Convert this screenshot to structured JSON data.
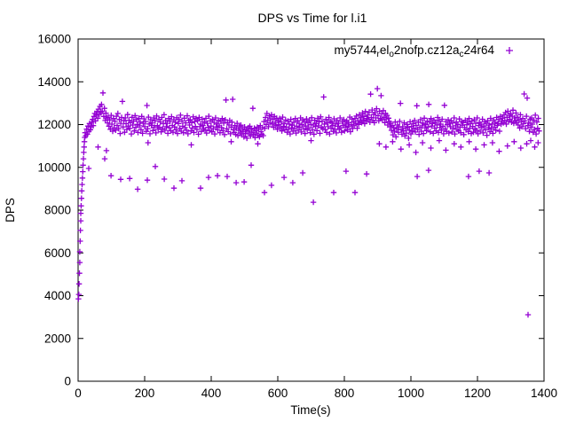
{
  "window": {
    "title": "DPS vs Time for l.i1"
  },
  "chart_data": {
    "type": "scatter",
    "title": "DPS vs Time for l.i1",
    "xlabel": "Time(s)",
    "ylabel": "DPS",
    "xlim": [
      0,
      1400
    ],
    "ylim": [
      0,
      16000
    ],
    "xticks": [
      0,
      200,
      400,
      600,
      800,
      1000,
      1200,
      1400
    ],
    "yticks": [
      0,
      2000,
      4000,
      6000,
      8000,
      10000,
      12000,
      14000,
      16000
    ],
    "grid": false,
    "legend_position": "top-right-inside",
    "marker": "plus",
    "background": "#ffffff",
    "axis_color": "#000000",
    "series": [
      {
        "name": "my5744_rel_o2nofp.cz12a_c24r64",
        "name_display": [
          [
            "t",
            "my5744"
          ],
          [
            "s",
            "r"
          ],
          [
            "t",
            "el"
          ],
          [
            "s",
            "o"
          ],
          [
            "t",
            "2nofp.cz12a"
          ],
          [
            "s",
            "c"
          ],
          [
            "t",
            "24r64"
          ]
        ],
        "color": "#9400d3",
        "ramp_points": [
          [
            1,
            3850
          ],
          [
            2,
            4060
          ],
          [
            3,
            4550
          ],
          [
            4,
            5050
          ],
          [
            5,
            5550
          ],
          [
            5,
            6050
          ],
          [
            6,
            6550
          ],
          [
            7,
            7050
          ],
          [
            8,
            7500
          ],
          [
            8,
            7850
          ],
          [
            9,
            8200
          ],
          [
            10,
            8550
          ],
          [
            11,
            8900
          ],
          [
            12,
            9200
          ],
          [
            13,
            9500
          ],
          [
            14,
            9800
          ],
          [
            15,
            10100
          ],
          [
            16,
            10400
          ],
          [
            17,
            10700
          ],
          [
            18,
            10950
          ],
          [
            19,
            11200
          ],
          [
            20,
            11400
          ]
        ],
        "band": {
          "t_start": 21,
          "t_step": 2.24,
          "values": [
            11620,
            11480,
            11790,
            11550,
            11930,
            11680,
            12050,
            11760,
            11890,
            12110,
            12240,
            11950,
            12380,
            12520,
            12170,
            12450,
            12610,
            12300,
            12720,
            12480,
            12850,
            12560,
            12940,
            12620,
            13480,
            12380,
            12760,
            12190,
            12530,
            12310,
            12080,
            12350,
            11920,
            12210,
            11780,
            12430,
            12020,
            11690,
            12280,
            11850,
            12150,
            11740,
            12390,
            11960,
            12520,
            11810,
            12240,
            11580,
            12060,
            12330,
            13080,
            11890,
            12180,
            11640,
            12310,
            12040,
            11770,
            12470,
            11930,
            12200,
            11820,
            12090,
            11560,
            12340,
            11980,
            12160,
            11700,
            12420,
            11870,
            12240,
            12010,
            11630,
            12290,
            11940,
            12120,
            11760,
            12380,
            11590,
            12060,
            12270,
            11900,
            12140,
            11680,
            12890,
            11810,
            12350,
            12030,
            11570,
            12230,
            11960,
            12080,
            11720,
            12310,
            11880,
            12170,
            11610,
            12400,
            11950,
            11790,
            12250,
            11870,
            12120,
            11660,
            12330,
            11800,
            12040,
            12460,
            11730,
            12190,
            11900,
            12060,
            11590,
            12280,
            11850,
            12150,
            11710,
            12370,
            11960,
            11640,
            12230,
            11890,
            12110,
            11750,
            12320,
            11580,
            12050,
            12240,
            11830,
            12440,
            11690,
            12160,
            11920,
            11620,
            12300,
            11860,
            12080,
            11740,
            12410,
            11570,
            12190,
            11980,
            12230,
            11700,
            12090,
            11840,
            12360,
            11630,
            12140,
            11910,
            12280,
            11770,
            12180,
            11550,
            12330,
            11900,
            12020,
            11680,
            12250,
            11960,
            11810,
            12120,
            11740,
            12290,
            11600,
            12060,
            11870,
            12390,
            11720,
            12170,
            11930,
            11660,
            12240,
            11810,
            12100,
            11560,
            12310,
            11890,
            12030,
            11750,
            12200,
            11940,
            11620,
            12150,
            11860,
            12280,
            11710,
            12070,
            11530,
            12220,
            13150,
            11800,
            12090,
            11670,
            11980,
            12190,
            11570,
            11880,
            12110,
            13180,
            11760,
            11630,
            11950,
            11540,
            11830,
            12060,
            11480,
            11740,
            11900,
            11600,
            11970,
            11520,
            11810,
            11680,
            11430,
            11890,
            11590,
            11760,
            11360,
            11700,
            11850,
            11560,
            11920,
            11470,
            11780,
            11640,
            12760,
            11540,
            11830,
            11390,
            11710,
            11600,
            11880,
            11500,
            11790,
            11430,
            11950,
            11670,
            11550,
            11860,
            11480,
            12140,
            11820,
            12330,
            12010,
            12520,
            12190,
            11900,
            12410,
            12080,
            12270,
            12460,
            12030,
            12250,
            11870,
            12380,
            12100,
            11940,
            12300,
            11780,
            12170,
            11990,
            12280,
            11850,
            12120,
            11700,
            12350,
            11910,
            12040,
            11760,
            12210,
            11880,
            11640,
            12160,
            11790,
            12020,
            11560,
            12240,
            11850,
            11970,
            11690,
            12110,
            11830,
            12280,
            11600,
            11920,
            12180,
            11740,
            12060,
            11880,
            12310,
            11650,
            11990,
            12220,
            11810,
            12140,
            11580,
            11930,
            12260,
            11760,
            12090,
            11840,
            12180,
            11620,
            12000,
            12320,
            11750,
            11980,
            11550,
            12200,
            11910,
            12050,
            11720,
            12290,
            11940,
            12130,
            11590,
            12360,
            11870,
            12160,
            11800,
            13290,
            12020,
            11770,
            12240,
            11630,
            12080,
            11900,
            12330,
            11560,
            12150,
            11830,
            12100,
            11950,
            11680,
            12270,
            11790,
            12030,
            11610,
            12190,
            11920,
            12060,
            11770,
            12310,
            11850,
            11640,
            12140,
            11960,
            12230,
            11700,
            12020,
            11880,
            12170,
            11750,
            12090,
            11930,
            12350,
            11670,
            12000,
            12260,
            11820,
            12120,
            11940,
            12280,
            12060,
            12400,
            11830,
            12180,
            12010,
            12460,
            12150,
            12320,
            12090,
            12540,
            12220,
            12380,
            12040,
            12610,
            12170,
            12290,
            12440,
            12250,
            12580,
            12110,
            13420,
            12330,
            12680,
            12200,
            12470,
            12090,
            12560,
            12310,
            12740,
            13680,
            12420,
            12180,
            12620,
            12280,
            13350,
            12500,
            12230,
            12650,
            12340,
            12090,
            12510,
            12260,
            12430,
            11980,
            12300,
            12140,
            11900,
            12060,
            11730,
            11950,
            11520,
            11860,
            11690,
            12120,
            11430,
            11800,
            11980,
            11640,
            11890,
            12150,
            12990,
            11760,
            11550,
            11900,
            11700,
            12080,
            11470,
            11820,
            11600,
            12010,
            11880,
            11360,
            11740,
            12130,
            11560,
            11910,
            11690,
            12040,
            11830,
            12190,
            11650,
            11960,
            12880,
            11780,
            12110,
            11540,
            11870,
            12230,
            11690,
            11940,
            12070,
            11580,
            12300,
            11850,
            12010,
            11720,
            12160,
            11890,
            12940,
            12120,
            11660,
            12280,
            11930,
            12050,
            11590,
            12210,
            11840,
            12100,
            11700,
            11980,
            12330,
            11630,
            12170,
            11860,
            12020,
            11740,
            12250,
            11920,
            11570,
            12900,
            11810,
            12140,
            11680,
            11990,
            12220,
            11600,
            12060,
            11900,
            12180,
            11650,
            12080,
            11830,
            12310,
            11560,
            11940,
            12120,
            11770,
            12010,
            11700,
            12260,
            11880,
            11620,
            12150,
            11970,
            12090,
            11530,
            11860,
            12200,
            11750,
            11990,
            12120,
            11670,
            12280,
            11820,
            12040,
            11580,
            12170,
            11910,
            11640,
            12230,
            11800,
            12060,
            11730,
            12310,
            11570,
            11950,
            12100,
            11690,
            12020,
            11870,
            12250,
            11610,
            11930,
            12140,
            11760,
            12060,
            11500,
            12180,
            11850,
            11980,
            11670,
            12290,
            11800,
            12030,
            11590,
            12210,
            11880,
            12110,
            11740,
            12330,
            11960,
            12050,
            12240,
            11690,
            12380,
            12020,
            12160,
            12300,
            12080,
            12450,
            12190,
            12560,
            12020,
            12340,
            12620,
            12150,
            12430,
            12240,
            12500,
            12110,
            12390,
            12670,
            12060,
            12310,
            12180,
            12540,
            12090,
            12350,
            11980,
            12220,
            11840,
            12460,
            12130,
            11900,
            12280,
            12040,
            13430,
            12170,
            11810,
            12390,
            13240,
            11950,
            12080,
            11680,
            12250,
            11870,
            12310,
            12020,
            11640,
            12200,
            11770,
            12440,
            11560,
            12120,
            11830,
            12290,
            11700
          ]
        },
        "mid_points": [
          [
            60,
            10950
          ],
          [
            210,
            11150
          ],
          [
            340,
            11050
          ],
          [
            460,
            11200
          ],
          [
            540,
            11100
          ],
          [
            700,
            11250
          ],
          [
            905,
            11100
          ],
          [
            925,
            10950
          ],
          [
            945,
            11200
          ],
          [
            970,
            10850
          ],
          [
            995,
            11050
          ],
          [
            1015,
            10700
          ],
          [
            1035,
            11150
          ],
          [
            1060,
            10900
          ],
          [
            1085,
            11250
          ],
          [
            1105,
            10800
          ],
          [
            1130,
            11100
          ],
          [
            1150,
            10950
          ],
          [
            1175,
            11200
          ],
          [
            1195,
            10850
          ],
          [
            1220,
            11050
          ],
          [
            1245,
            11150
          ],
          [
            1265,
            10750
          ],
          [
            1290,
            11000
          ],
          [
            1310,
            11200
          ],
          [
            1330,
            10900
          ],
          [
            1348,
            11100
          ],
          [
            1360,
            11250
          ],
          [
            1372,
            10950
          ],
          [
            1382,
            11150
          ]
        ],
        "low_points": [
          [
            32,
            9950
          ],
          [
            80,
            10400
          ],
          [
            85,
            10780
          ],
          [
            99,
            9610
          ],
          [
            128,
            9440
          ],
          [
            155,
            9480
          ],
          [
            179,
            8980
          ],
          [
            208,
            9400
          ],
          [
            232,
            10040
          ],
          [
            259,
            9450
          ],
          [
            288,
            9030
          ],
          [
            312,
            9370
          ],
          [
            368,
            9030
          ],
          [
            392,
            9530
          ],
          [
            419,
            9610
          ],
          [
            448,
            9570
          ],
          [
            475,
            9280
          ],
          [
            499,
            9320
          ],
          [
            520,
            10100
          ],
          [
            560,
            8820
          ],
          [
            581,
            9160
          ],
          [
            619,
            9530
          ],
          [
            645,
            9280
          ],
          [
            675,
            9740
          ],
          [
            707,
            8370
          ],
          [
            768,
            8820
          ],
          [
            805,
            9820
          ],
          [
            832,
            8820
          ],
          [
            867,
            9690
          ],
          [
            1019,
            9570
          ],
          [
            1053,
            9860
          ],
          [
            1173,
            9570
          ],
          [
            1205,
            9820
          ],
          [
            1235,
            9740
          ],
          [
            1352,
            3110
          ]
        ]
      }
    ]
  }
}
